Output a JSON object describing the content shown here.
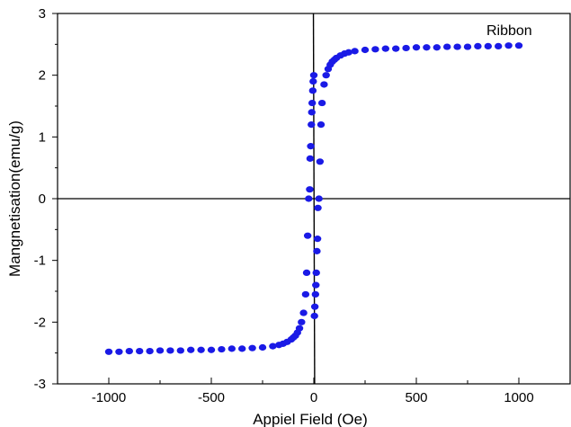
{
  "chart_data": {
    "type": "scatter",
    "title": "",
    "xlabel": "Appiel Field (Oe)",
    "ylabel": "Mangnetisation(emu/g)",
    "xlim": [
      -1250,
      1250
    ],
    "ylim": [
      -3,
      3
    ],
    "x_ticks": [
      -1000,
      -500,
      0,
      500,
      1000
    ],
    "y_ticks": [
      -3,
      -2,
      -1,
      0,
      1,
      2,
      3
    ],
    "grid": false,
    "legend_position": "top-right",
    "marker_color": "#1a1ae6",
    "series": [
      {
        "name": "Ribbon",
        "x": [
          -1000,
          -950,
          -900,
          -850,
          -800,
          -750,
          -700,
          -650,
          -600,
          -550,
          -500,
          -450,
          -400,
          -350,
          -300,
          -250,
          -200,
          -170,
          -150,
          -130,
          -110,
          -100,
          -90,
          -80,
          -70,
          -60,
          -50,
          -40,
          -35,
          -30,
          -25,
          -20,
          -18,
          -15,
          -12,
          -10,
          -8,
          -5,
          -3,
          0,
          3,
          5,
          8,
          10,
          12,
          15,
          18,
          20,
          25,
          30,
          35,
          40,
          50,
          60,
          70,
          80,
          90,
          100,
          110,
          130,
          150,
          170,
          200,
          250,
          300,
          350,
          400,
          450,
          500,
          550,
          600,
          650,
          700,
          750,
          800,
          850,
          900,
          950,
          1000
        ],
        "y": [
          -2.48,
          -2.48,
          -2.47,
          -2.47,
          -2.47,
          -2.46,
          -2.46,
          -2.46,
          -2.45,
          -2.45,
          -2.45,
          -2.44,
          -2.43,
          -2.43,
          -2.42,
          -2.41,
          -2.39,
          -2.37,
          -2.35,
          -2.32,
          -2.28,
          -2.25,
          -2.22,
          -2.17,
          -2.1,
          -2.0,
          -1.85,
          -1.55,
          -1.2,
          -0.6,
          0.0,
          0.15,
          0.65,
          0.85,
          1.2,
          1.4,
          1.55,
          1.75,
          1.9,
          2.0,
          -1.9,
          -1.75,
          -1.55,
          -1.4,
          -1.2,
          -0.85,
          -0.65,
          -0.15,
          0.0,
          0.6,
          1.2,
          1.55,
          1.85,
          2.0,
          2.1,
          2.17,
          2.22,
          2.25,
          2.28,
          2.32,
          2.35,
          2.37,
          2.39,
          2.41,
          2.42,
          2.43,
          2.43,
          2.44,
          2.45,
          2.45,
          2.45,
          2.46,
          2.46,
          2.46,
          2.47,
          2.47,
          2.47,
          2.48,
          2.48
        ]
      }
    ]
  }
}
